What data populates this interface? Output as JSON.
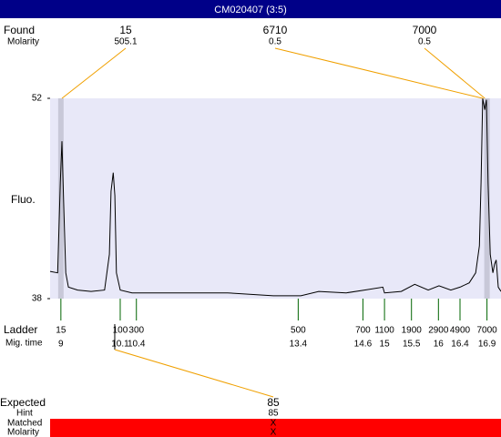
{
  "chart_data": {
    "type": "line",
    "title": "CM020407 (3:5)",
    "y_label": "Fluo.",
    "xlim": [
      8.8,
      17.16
    ],
    "ylim": [
      38,
      52
    ],
    "yticks": [
      38,
      52
    ],
    "x": [
      8.8,
      8.94,
      8.99,
      9.02,
      9.05,
      9.09,
      9.14,
      9.31,
      9.56,
      9.81,
      9.9,
      9.93,
      9.97,
      10.0,
      10.03,
      10.1,
      10.32,
      10.57,
      11.25,
      12.09,
      12.94,
      13.45,
      13.78,
      14.29,
      14.63,
      14.97,
      15.0,
      15.31,
      15.56,
      15.81,
      16.01,
      16.23,
      16.4,
      16.57,
      16.69,
      16.76,
      16.79,
      16.82,
      16.86,
      16.89,
      16.92,
      16.96,
      17.01,
      17.04,
      17.07,
      17.11,
      17.16
    ],
    "series": [
      {
        "color": "#000000",
        "values": [
          39.9,
          39.8,
          46.1,
          49.0,
          44.9,
          39.8,
          38.8,
          38.6,
          38.5,
          38.6,
          41.1,
          45.5,
          46.8,
          45.2,
          39.8,
          38.6,
          38.4,
          38.4,
          38.4,
          38.4,
          38.2,
          38.2,
          38.5,
          38.4,
          38.6,
          38.8,
          38.4,
          38.5,
          39.0,
          38.6,
          38.9,
          38.6,
          38.8,
          39.1,
          39.8,
          41.7,
          46.1,
          52.0,
          51.2,
          51.9,
          46.1,
          41.1,
          39.8,
          40.4,
          40.7,
          38.8,
          38.5
        ]
      }
    ],
    "found": {
      "label": "Found",
      "molarity_label": "Molarity",
      "sizes": [
        15,
        6710,
        7000
      ],
      "molarity": [
        505.1,
        0.5,
        0.5
      ],
      "times": [
        9.02,
        16.82,
        16.86
      ]
    },
    "ladder": {
      "label": "Ladder",
      "time_label": "Mig. time",
      "sizes": [
        15,
        100,
        300,
        500,
        700,
        1100,
        1900,
        2900,
        4900,
        7000
      ],
      "times": [
        9,
        10.1,
        10.4,
        13.4,
        14.6,
        15,
        15.5,
        16,
        16.4,
        16.9
      ]
    },
    "expected": {
      "label": "Expected",
      "value": 85,
      "hint_label": "Hint",
      "hint": 85,
      "matched_label": "Matched",
      "matched": "X",
      "molarity_label": "Molarity",
      "molarity": "X"
    }
  }
}
